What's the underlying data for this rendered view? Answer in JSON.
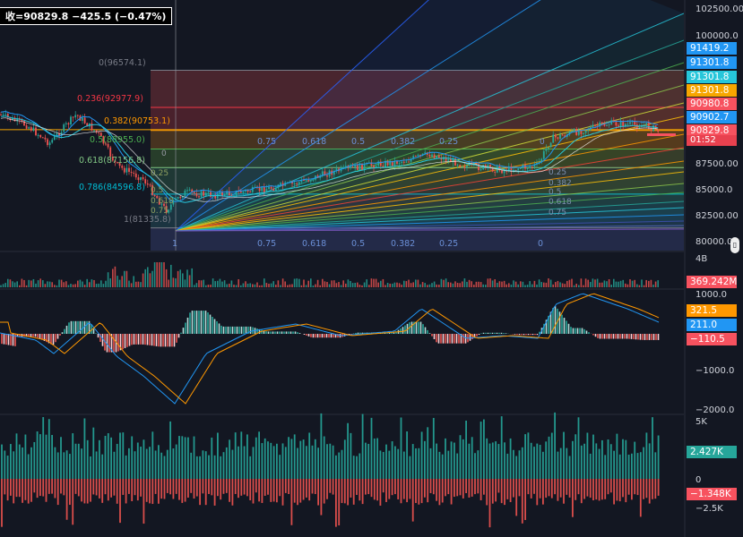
{
  "header": {
    "legend": "收=90829.8  −425.5 (−0.47%)"
  },
  "price_axis": {
    "ticks": [
      "102500.00",
      "100000.0",
      "87500.00",
      "85000.0",
      "82500.00",
      "80000.0"
    ],
    "tags": [
      {
        "text": "91419.2",
        "bg": "#2196f3",
        "fg": "#ffffff"
      },
      {
        "text": "91301.8",
        "bg": "#2196f3",
        "fg": "#ffffff"
      },
      {
        "text": "91301.8",
        "bg": "#26c6da",
        "fg": "#ffffff"
      },
      {
        "text": "91301.8",
        "bg": "#f7a600",
        "fg": "#ffffff"
      },
      {
        "text": "90980.8",
        "bg": "#f7525f",
        "fg": "#ffffff"
      },
      {
        "text": "90902.7",
        "bg": "#2196f3",
        "fg": "#ffffff"
      },
      {
        "text": "90829.8",
        "bg": "#f7525f",
        "fg": "#ffffff"
      }
    ],
    "countdown": "01:52"
  },
  "fib_retracement": {
    "levels": [
      {
        "label": "0(96574.1)",
        "color": "#787b86"
      },
      {
        "label": "0.236(92977.9)",
        "color": "#f23645"
      },
      {
        "label": "0.382(90753.1)",
        "color": "#ff9800"
      },
      {
        "label": "0.5(88955.0)",
        "color": "#4caf50"
      },
      {
        "label": "0.618(87156.8)",
        "color": "#81c784"
      },
      {
        "label": "0.786(84596.8)",
        "color": "#00bcd4"
      },
      {
        "label": "1(81335.8)",
        "color": "#787b86"
      }
    ]
  },
  "fan_labels": {
    "top": [
      "0.75",
      "0.618",
      "0.5",
      "0.382",
      "0.25"
    ],
    "bottom": [
      "0.75",
      "0.618",
      "0.5",
      "0.382",
      "0.25",
      "0"
    ],
    "right": [
      "0.25",
      "0.382",
      "0.5",
      "0.618",
      "0.75"
    ],
    "left": [
      "0.25",
      "0.5",
      "0.618",
      "0.75"
    ],
    "axis_one": "1",
    "zero": "0"
  },
  "volume": {
    "axis_label": "4B",
    "tag": "369.242M"
  },
  "macd": {
    "ticks": [
      "1000.0",
      "−1000.0",
      "−2000.0"
    ],
    "tags": [
      {
        "text": "321.5",
        "bg": "#ff9800"
      },
      {
        "text": "211.0",
        "bg": "#2196f3"
      },
      {
        "text": "−110.5",
        "bg": "#f7525f"
      }
    ]
  },
  "flow": {
    "ticks": [
      "5K",
      "0",
      "−2.5K"
    ],
    "tags": [
      {
        "text": "2.427K",
        "bg": "#26a69a"
      },
      {
        "text": "−1.348K",
        "bg": "#f7525f"
      }
    ]
  },
  "colors": {
    "up": "#26a69a",
    "down": "#ef5350",
    "bg": "#131722",
    "grid": "#2a2e39"
  }
}
